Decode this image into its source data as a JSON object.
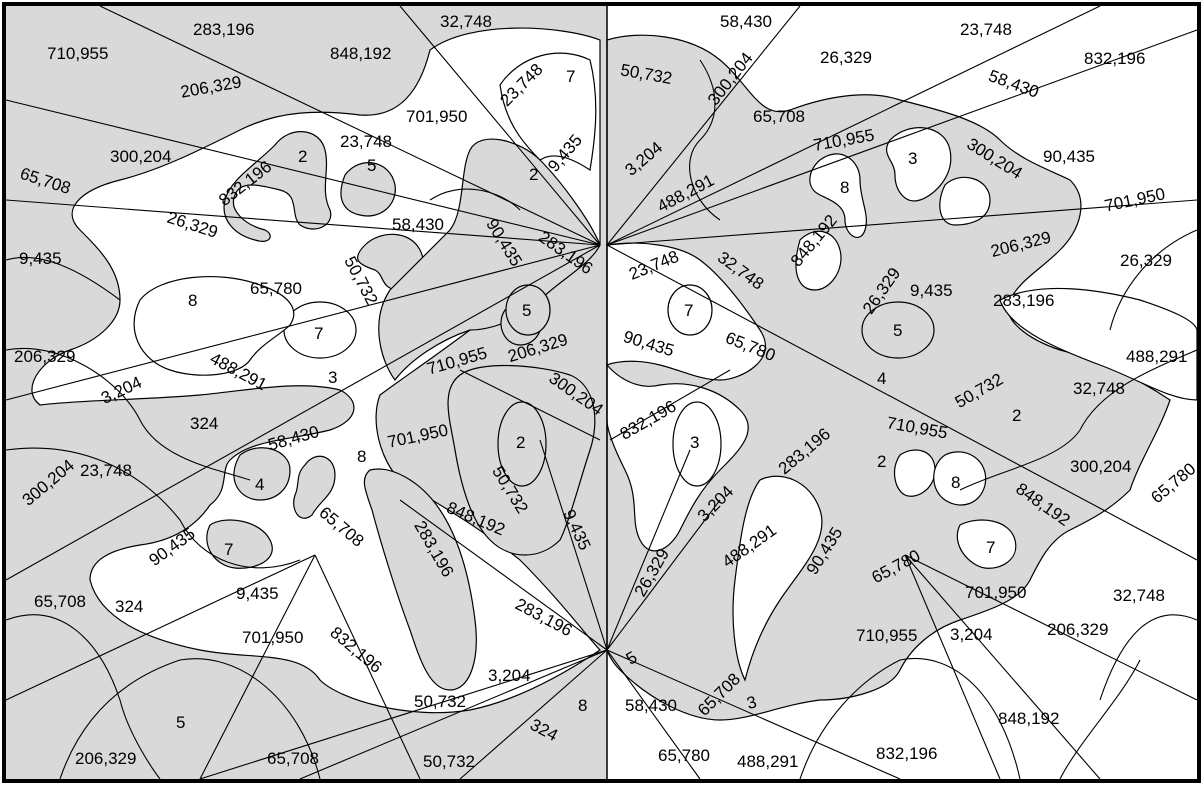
{
  "colors": {
    "shaded": "#d9d9d9",
    "white": "#ffffff",
    "line": "#000000"
  },
  "labels": [
    "283,196",
    "32,748",
    "58,430",
    "23,748",
    "710,955",
    "848,192",
    "26,329",
    "832,196",
    "23,748",
    "7",
    "50,732",
    "300,204",
    "206,329",
    "58,430",
    "701,950",
    "65,708",
    "300,204",
    "832,196",
    "2",
    "23,748",
    "9,435",
    "3,204",
    "710,955",
    "3",
    "300,204",
    "90,435",
    "488,291",
    "8",
    "2",
    "5",
    "65,708",
    "848,192",
    "701,950",
    "26,329",
    "58,430",
    "90,435",
    "283,196",
    "23,748",
    "206,329",
    "9,435",
    "50,732",
    "32,748",
    "26,329",
    "26,329",
    "9,435",
    "65,780",
    "8",
    "5",
    "7",
    "283,196",
    "7",
    "5",
    "206,329",
    "3,204",
    "488,291",
    "710,955",
    "206,329",
    "90,435",
    "65,780",
    "4",
    "488,291",
    "50,732",
    "3",
    "32,748",
    "300,204",
    "832,196",
    "2",
    "701,950",
    "324",
    "58,430",
    "8",
    "710,955",
    "3",
    "283,196",
    "300,204",
    "23,748",
    "2",
    "2",
    "300,204",
    "65,780",
    "8",
    "50,732",
    "3,204",
    "848,192",
    "90,435",
    "65,708",
    "283,196",
    "848,192",
    "4",
    "9,435",
    "488,291",
    "90,435",
    "26,329",
    "7",
    "65,780",
    "65,708",
    "7",
    "9,435",
    "701,950",
    "32,748",
    "324",
    "701,950",
    "832,196",
    "283,196",
    "5",
    "3,204",
    "206,329",
    "65,708",
    "710,955",
    "3",
    "3,204",
    "50,732",
    "5",
    "8",
    "58,430",
    "848,192",
    "206,329",
    "65,708",
    "50,732",
    "324",
    "65,780",
    "488,291",
    "832,196"
  ]
}
